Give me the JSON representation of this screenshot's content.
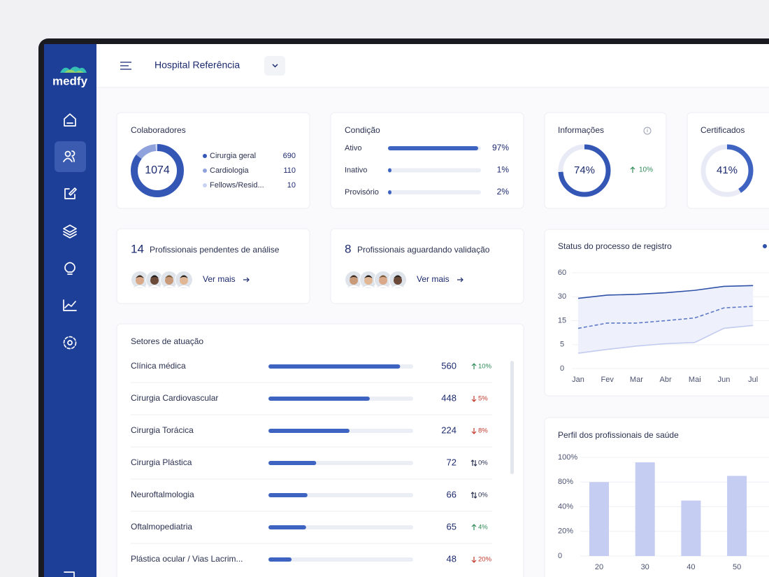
{
  "sidebar": {
    "logo": "medfy"
  },
  "header": {
    "hospital": "Hospital Referência"
  },
  "colaboradores": {
    "title": "Colaboradores",
    "total": 1074,
    "items": [
      {
        "label": "Cirurgia geral",
        "value": 690,
        "color": "#3457b5"
      },
      {
        "label": "Cardiologia",
        "value": 110,
        "color": "#8fa2dc"
      },
      {
        "label": "Fellows/Resid...",
        "value": 10,
        "color": "#c9d2f1"
      }
    ]
  },
  "condicao": {
    "title": "Condição",
    "items": [
      {
        "label": "Ativo",
        "value": 97,
        "value_label": "97%"
      },
      {
        "label": "Inativo",
        "value": 1,
        "value_label": "1%"
      },
      {
        "label": "Provisório",
        "value": 2,
        "value_label": "2%"
      }
    ]
  },
  "informacoes": {
    "title": "Informações",
    "value": 74,
    "value_label": "74%",
    "change": "10%",
    "trend": "up"
  },
  "certificados": {
    "title": "Certificados",
    "value": 41,
    "value_label": "41%"
  },
  "pendentes": {
    "count": 14,
    "text": "Profissionais pendentes de análise",
    "link": "Ver mais"
  },
  "aguardando": {
    "count": 8,
    "text": "Profissionais aguardando validação",
    "link": "Ver mais"
  },
  "setores": {
    "title": "Setores de atuação",
    "rows": [
      {
        "name": "Clínica médica",
        "share": 91,
        "value": 560,
        "change": "10%",
        "trend": "up"
      },
      {
        "name": "Cirurgia Cardiovascular",
        "share": 70,
        "value": 448,
        "change": "5%",
        "trend": "down"
      },
      {
        "name": "Cirurgia Torácica",
        "share": 56,
        "value": 224,
        "change": "8%",
        "trend": "down"
      },
      {
        "name": "Cirurgia Plástica",
        "share": 33,
        "value": 72,
        "change": "0%",
        "trend": "flat"
      },
      {
        "name": "Neuroftalmologia",
        "share": 27,
        "value": 66,
        "change": "0%",
        "trend": "flat"
      },
      {
        "name": "Oftalmopediatria",
        "share": 26,
        "value": 65,
        "change": "4%",
        "trend": "up"
      },
      {
        "name": "Plástica ocular / Vias Lacrim...",
        "share": 16,
        "value": 48,
        "change": "20%",
        "trend": "down"
      }
    ]
  },
  "chart_data": [
    {
      "type": "line",
      "title": "Status do processo de registro",
      "categories": [
        "Jan",
        "Fev",
        "Mar",
        "Abr",
        "Mai",
        "Jun",
        "Jul"
      ],
      "series": [
        {
          "color": "#2f52a8",
          "dash": false,
          "values": [
            29,
            32,
            33,
            35,
            38,
            43,
            44
          ]
        },
        {
          "color": "#5f79c6",
          "dash": true,
          "values": [
            11.8,
            14,
            14,
            15,
            16.7,
            23,
            24
          ]
        },
        {
          "color": "#c3cbef",
          "dash": false,
          "values": [
            3.2,
            4,
            4.7,
            5.4,
            5.9,
            11.8,
            13
          ]
        }
      ],
      "ylim": [
        0,
        60
      ],
      "yticks": [
        0,
        5,
        15,
        30,
        60
      ],
      "grid": true
    },
    {
      "type": "bar",
      "title": "Perfil dos profissionais de saúde",
      "categories": [
        "20",
        "30",
        "40",
        "50"
      ],
      "values": [
        80,
        96,
        50,
        85
      ],
      "color": "#c5cdf3",
      "ylim": [
        0,
        100
      ],
      "yticks": [
        0,
        {
          "value": 20,
          "label": "20%"
        },
        {
          "value": 40,
          "label": "40%"
        },
        {
          "value": 80,
          "label": "80%"
        },
        {
          "value": 100,
          "label": "100%"
        }
      ],
      "grid": true
    }
  ]
}
